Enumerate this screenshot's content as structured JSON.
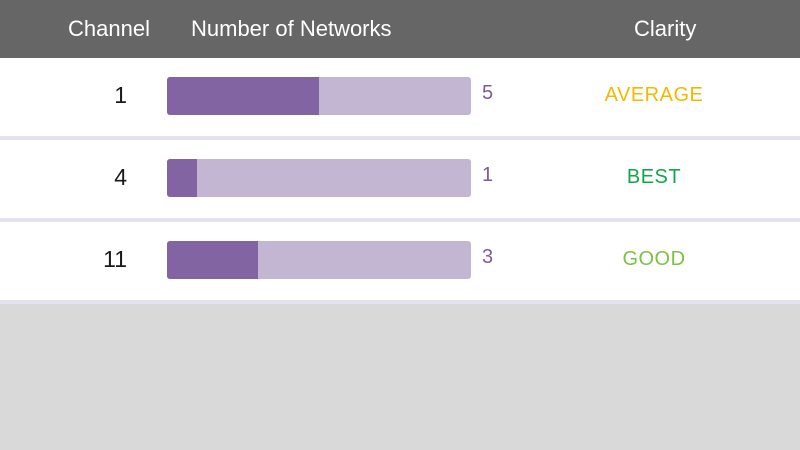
{
  "header": {
    "channel_label": "Channel",
    "networks_label": "Number of Networks",
    "clarity_label": "Clarity"
  },
  "max_networks": 10,
  "rows": [
    {
      "channel": "1",
      "networks": 5,
      "networks_label": "5",
      "clarity": "AVERAGE",
      "clarity_color": "#f5b800"
    },
    {
      "channel": "4",
      "networks": 1,
      "networks_label": "1",
      "clarity": "BEST",
      "clarity_color": "#12a84a"
    },
    {
      "channel": "11",
      "networks": 3,
      "networks_label": "3",
      "clarity": "GOOD",
      "clarity_color": "#7cc243"
    }
  ]
}
